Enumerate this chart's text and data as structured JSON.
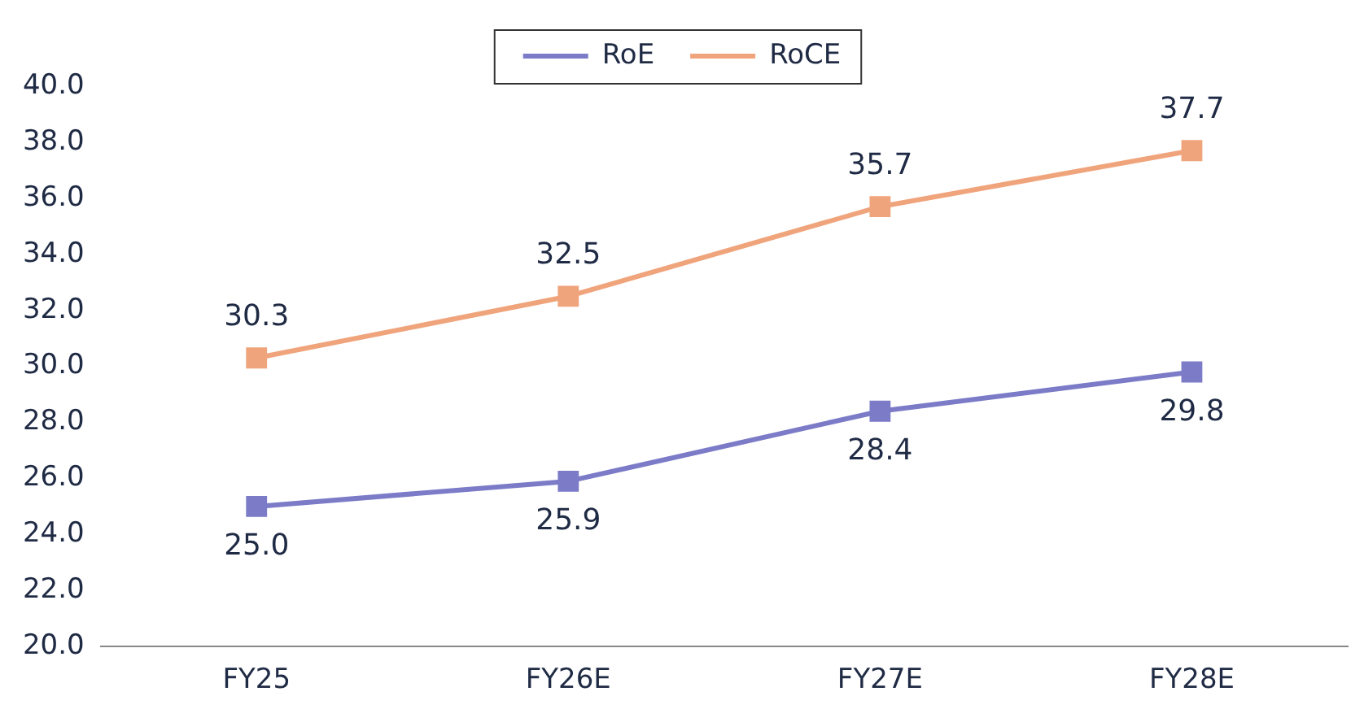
{
  "chart_data": {
    "type": "line",
    "categories": [
      "FY25",
      "FY26E",
      "FY27E",
      "FY28E"
    ],
    "series": [
      {
        "name": "RoE",
        "color": "#7b7bc8",
        "values": [
          25.0,
          25.9,
          28.4,
          29.8
        ],
        "value_labels": [
          "25.0",
          "25.9",
          "28.4",
          "29.8"
        ]
      },
      {
        "name": "RoCE",
        "color": "#f0a47c",
        "values": [
          30.3,
          32.5,
          35.7,
          37.7
        ],
        "value_labels": [
          "30.3",
          "32.5",
          "35.7",
          "37.7"
        ]
      }
    ],
    "ylim": [
      20,
      40
    ],
    "yticks": [
      {
        "value": 20,
        "label": "20.0"
      },
      {
        "value": 22,
        "label": "22.0"
      },
      {
        "value": 24,
        "label": "24.0"
      },
      {
        "value": 26,
        "label": "26.0"
      },
      {
        "value": 28,
        "label": "28.0"
      },
      {
        "value": 30,
        "label": "30.0"
      },
      {
        "value": 32,
        "label": "32.0"
      },
      {
        "value": 34,
        "label": "34.0"
      },
      {
        "value": 36,
        "label": "36.0"
      },
      {
        "value": 38,
        "label": "38.0"
      },
      {
        "value": 40,
        "label": "40.0"
      }
    ],
    "grid": false,
    "legend": "top",
    "marker": "square",
    "line_style": "solid"
  }
}
